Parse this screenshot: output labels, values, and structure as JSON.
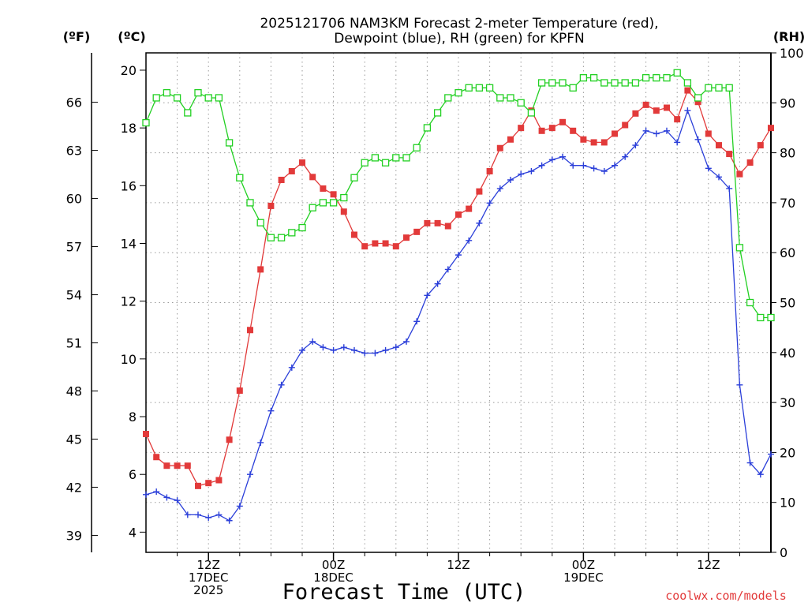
{
  "title_line1": "2025121706 NAM3KM Forecast 2-meter Temperature (red),",
  "title_line2": "Dewpoint (blue), RH (green) for KPFN",
  "unit_f": "(ºF)",
  "unit_c": "(ºC)",
  "unit_rh": "(RH)",
  "x_title": "Forecast Time (UTC)",
  "credit": "coolwx.com/models",
  "colors": {
    "temp": "#e23a3a",
    "dewpoint": "#2b3fd9",
    "rh": "#22d022"
  },
  "chart_data": {
    "type": "line",
    "title": "2025121706 NAM3KM Forecast 2-meter Temperature (red), Dewpoint (blue), RH (green) for KPFN",
    "xlabel": "Forecast Time (UTC)",
    "x_unit": "forecast hour",
    "xlim": [
      0,
      60
    ],
    "x": [
      0,
      1,
      2,
      3,
      4,
      5,
      6,
      7,
      8,
      9,
      10,
      11,
      12,
      13,
      14,
      15,
      16,
      17,
      18,
      19,
      20,
      21,
      22,
      23,
      24,
      25,
      26,
      27,
      28,
      29,
      30,
      31,
      32,
      33,
      34,
      35,
      36,
      37,
      38,
      39,
      40,
      41,
      42,
      43,
      44,
      45,
      46,
      47,
      48,
      49,
      50,
      51,
      52,
      53,
      54,
      55,
      56,
      57,
      58,
      59,
      60
    ],
    "x_ticks": [
      {
        "x": 6,
        "lines": [
          "12Z",
          "17DEC",
          "2025"
        ]
      },
      {
        "x": 18,
        "lines": [
          "00Z",
          "18DEC"
        ]
      },
      {
        "x": 30,
        "lines": [
          "12Z"
        ]
      },
      {
        "x": 42,
        "lines": [
          "00Z",
          "19DEC"
        ]
      },
      {
        "x": 54,
        "lines": [
          "12Z"
        ]
      }
    ],
    "left_axis_c": {
      "label": "(ºC)",
      "ylim": [
        3.3,
        20.6
      ],
      "ticks": [
        4,
        6,
        8,
        10,
        12,
        14,
        16,
        18,
        20
      ]
    },
    "left_axis_f": {
      "label": "(ºF)",
      "ticks": [
        39,
        42,
        45,
        48,
        51,
        54,
        57,
        60,
        63,
        66
      ]
    },
    "right_axis_rh": {
      "label": "(RH)",
      "ylim": [
        0,
        100
      ],
      "ticks": [
        0,
        10,
        20,
        30,
        40,
        50,
        60,
        70,
        80,
        90,
        100
      ]
    },
    "grid": true,
    "series": [
      {
        "name": "2-meter Temperature",
        "units": "degC",
        "axis": "left",
        "color": "#e23a3a",
        "marker": "filled-square",
        "values": [
          7.4,
          6.6,
          6.3,
          6.3,
          6.3,
          5.6,
          5.7,
          5.8,
          7.2,
          8.9,
          11.0,
          13.1,
          15.3,
          16.2,
          16.5,
          16.8,
          16.3,
          15.9,
          15.7,
          15.1,
          14.3,
          13.9,
          14.0,
          14.0,
          13.9,
          14.2,
          14.4,
          14.7,
          14.7,
          14.6,
          15.0,
          15.2,
          15.8,
          16.5,
          17.3,
          17.6,
          18.0,
          18.6,
          17.9,
          18.0,
          18.2,
          17.9,
          17.6,
          17.5,
          17.5,
          17.8,
          18.1,
          18.5,
          18.8,
          18.6,
          18.7,
          18.3,
          19.3,
          18.9,
          17.8,
          17.4,
          17.1,
          16.4,
          16.8,
          17.4,
          18.0
        ]
      },
      {
        "name": "Dewpoint",
        "units": "degC",
        "axis": "left",
        "color": "#2b3fd9",
        "marker": "plus",
        "values": [
          5.3,
          5.4,
          5.2,
          5.1,
          4.6,
          4.6,
          4.5,
          4.6,
          4.4,
          4.9,
          6.0,
          7.1,
          8.2,
          9.1,
          9.7,
          10.3,
          10.6,
          10.4,
          10.3,
          10.4,
          10.3,
          10.2,
          10.2,
          10.3,
          10.4,
          10.6,
          11.3,
          12.2,
          12.6,
          13.1,
          13.6,
          14.1,
          14.7,
          15.4,
          15.9,
          16.2,
          16.4,
          16.5,
          16.7,
          16.9,
          17.0,
          16.7,
          16.7,
          16.6,
          16.5,
          16.7,
          17.0,
          17.4,
          17.9,
          17.8,
          17.9,
          17.5,
          18.6,
          17.6,
          16.6,
          16.3,
          15.9,
          9.1,
          6.4,
          6.0,
          6.7
        ]
      },
      {
        "name": "RH",
        "units": "%",
        "axis": "right",
        "color": "#22d022",
        "marker": "open-square",
        "values": [
          86,
          91,
          92,
          91,
          88,
          92,
          91,
          91,
          82,
          75,
          70,
          66,
          63,
          63,
          64,
          65,
          69,
          70,
          70,
          71,
          75,
          78,
          79,
          78,
          79,
          79,
          81,
          85,
          88,
          91,
          92,
          93,
          93,
          93,
          91,
          91,
          90,
          88,
          94,
          94,
          94,
          93,
          95,
          95,
          94,
          94,
          94,
          94,
          95,
          95,
          95,
          96,
          94,
          91,
          93,
          93,
          93,
          61,
          50,
          47,
          47
        ]
      }
    ]
  }
}
